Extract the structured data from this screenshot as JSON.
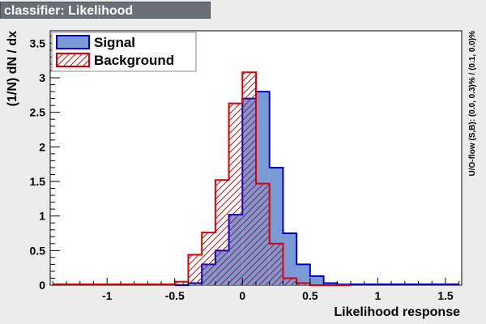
{
  "title": "classifier: Likelihood",
  "chart_data": {
    "type": "bar",
    "xlabel": "Likelihood response",
    "ylabel": "(1/N) dN / dx",
    "side_label": "U/O-flow (S,B): (0.0, 0.3)% / (0.1, 0.0)%",
    "xlim": [
      -1.42,
      1.62
    ],
    "ylim": [
      0,
      3.68
    ],
    "x_ticks": [
      "-1",
      "-0.5",
      "0",
      "0.5",
      "1",
      "1.5"
    ],
    "y_ticks": [
      "0",
      "0.5",
      "1",
      "1.5",
      "2",
      "2.5",
      "3",
      "3.5"
    ],
    "bin_edges": [
      -0.5,
      -0.4,
      -0.3,
      -0.2,
      -0.1,
      0.0,
      0.1,
      0.2,
      0.3,
      0.4,
      0.5,
      0.6,
      0.7,
      0.8
    ],
    "series": [
      {
        "name": "Signal",
        "color": "#0000cc",
        "fill": "#7a9ad6",
        "style": "solid",
        "values": [
          0.0,
          0.03,
          0.3,
          0.5,
          1.02,
          2.7,
          2.8,
          1.7,
          0.75,
          0.3,
          0.13,
          0.03,
          0.01
        ]
      },
      {
        "name": "Background",
        "color": "#dd0000",
        "fill": "#dd0000",
        "style": "hatched",
        "values": [
          0.05,
          0.44,
          0.76,
          1.52,
          2.63,
          3.08,
          1.47,
          0.6,
          0.1,
          0.03,
          0.0,
          0.0,
          0.0
        ]
      }
    ],
    "legend_position": "top-left"
  }
}
